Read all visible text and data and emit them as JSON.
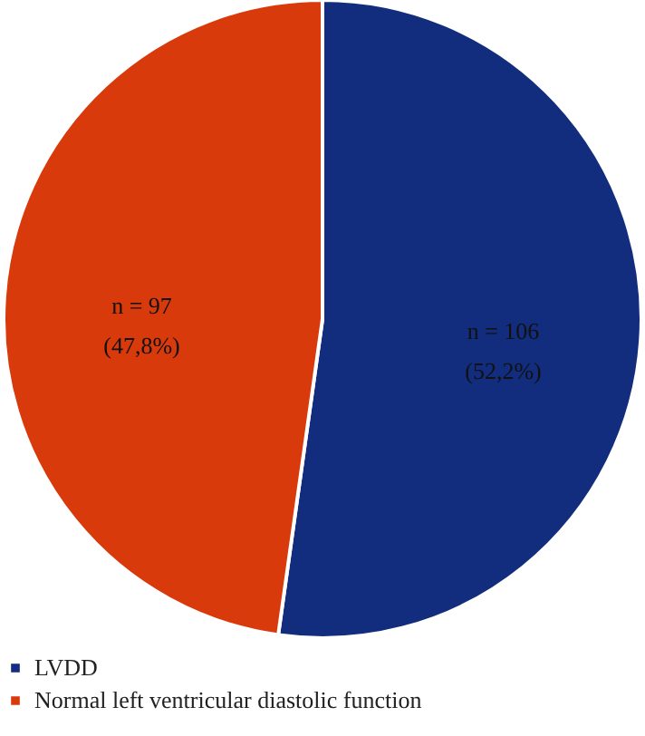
{
  "chart_data": {
    "type": "pie",
    "categories": [
      "LVDD",
      "Normal left ventricular diastolic function"
    ],
    "values": [
      106,
      97
    ],
    "colors": [
      "#132d7e",
      "#d93a0b"
    ],
    "value_labels": [
      "n = 106\n(52,2%)",
      "n = 97\n(47,8%)"
    ],
    "legend": "bottom left"
  }
}
